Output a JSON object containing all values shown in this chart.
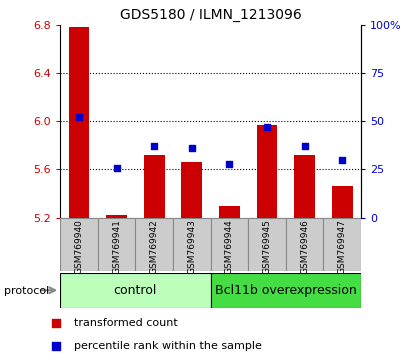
{
  "title": "GDS5180 / ILMN_1213096",
  "samples": [
    "GSM769940",
    "GSM769941",
    "GSM769942",
    "GSM769943",
    "GSM769944",
    "GSM769945",
    "GSM769946",
    "GSM769947"
  ],
  "transformed_count": [
    6.78,
    5.22,
    5.72,
    5.66,
    5.3,
    5.97,
    5.72,
    5.46
  ],
  "percentile_rank": [
    52,
    26,
    37,
    36,
    28,
    47,
    37,
    30
  ],
  "ylim_left": [
    5.2,
    6.8
  ],
  "ylim_right": [
    0,
    100
  ],
  "yticks_left": [
    5.2,
    5.6,
    6.0,
    6.4,
    6.8
  ],
  "yticks_right": [
    0,
    25,
    50,
    75,
    100
  ],
  "ytick_labels_right": [
    "0",
    "25",
    "50",
    "75",
    "100%"
  ],
  "bar_bottom": 5.2,
  "bar_color": "#cc0000",
  "dot_color": "#0000cc",
  "gridline_ticks": [
    5.6,
    6.0,
    6.4
  ],
  "protocol_groups": [
    {
      "label": "control",
      "start": 0,
      "end": 3,
      "color": "#bbffbb"
    },
    {
      "label": "Bcl11b overexpression",
      "start": 4,
      "end": 7,
      "color": "#44dd44"
    }
  ],
  "legend_items": [
    {
      "label": "transformed count",
      "color": "#cc0000"
    },
    {
      "label": "percentile rank within the sample",
      "color": "#0000cc"
    }
  ],
  "protocol_label": "protocol",
  "bar_width": 0.55,
  "dot_size": 22,
  "sample_bg_color": "#cccccc",
  "sample_bg_edge": "#888888",
  "title_fontsize": 10,
  "tick_fontsize": 8,
  "sample_fontsize": 6.5,
  "legend_fontsize": 8,
  "protocol_fontsize": 8,
  "group_label_fontsize": 9
}
